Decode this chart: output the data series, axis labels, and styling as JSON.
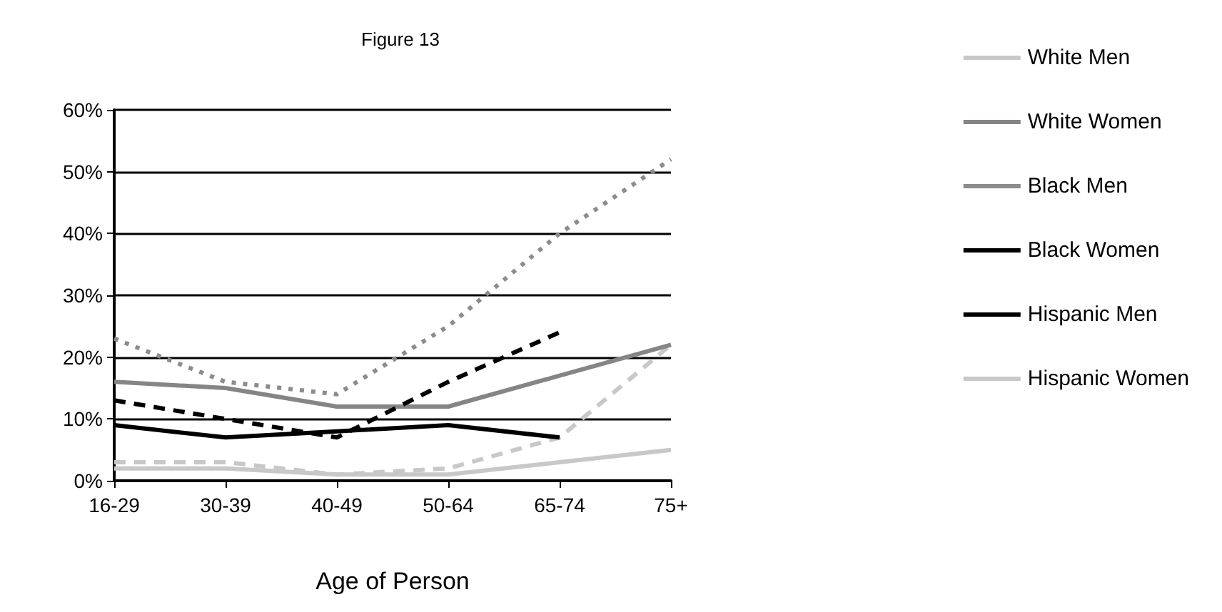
{
  "chart_data": {
    "type": "line",
    "title": "Figure 13",
    "xlabel": "Age of Person",
    "categories": [
      "16-29",
      "30-39",
      "40-49",
      "50-64",
      "65-74",
      "75+"
    ],
    "series": [
      {
        "name": "White Men",
        "color": "#c8c8c8",
        "line_style": "dashed",
        "values": [
          3,
          3,
          1,
          2,
          7,
          22
        ]
      },
      {
        "name": "White Women",
        "color": "#858585",
        "line_style": "solid",
        "values": [
          16,
          15,
          12,
          12,
          17,
          22
        ]
      },
      {
        "name": "Black Men",
        "color": "#8c8c8c",
        "line_style": "dotted",
        "values": [
          23,
          16,
          14,
          25,
          40,
          52
        ]
      },
      {
        "name": "Black Women",
        "color": "#000000",
        "line_style": "solid",
        "values": [
          9,
          7,
          8,
          9,
          7,
          null
        ]
      },
      {
        "name": "Hispanic Men",
        "color": "#000000",
        "line_style": "dashed",
        "values": [
          13,
          10,
          7,
          16,
          24,
          null
        ]
      },
      {
        "name": "Hispanic Women",
        "color": "#c8c8c8",
        "line_style": "solid",
        "values": [
          2,
          2,
          1,
          1,
          3,
          5
        ]
      }
    ],
    "ylim": [
      0,
      60
    ],
    "yticks": [
      {
        "value": 0,
        "label": "0%"
      },
      {
        "value": 10,
        "label": "10%"
      },
      {
        "value": 20,
        "label": "20%"
      },
      {
        "value": 30,
        "label": "30%"
      },
      {
        "value": 40,
        "label": "40%"
      },
      {
        "value": 50,
        "label": "50%"
      },
      {
        "value": 60,
        "label": "60%"
      }
    ],
    "grid": "y",
    "legend": "right",
    "marker": "none"
  }
}
